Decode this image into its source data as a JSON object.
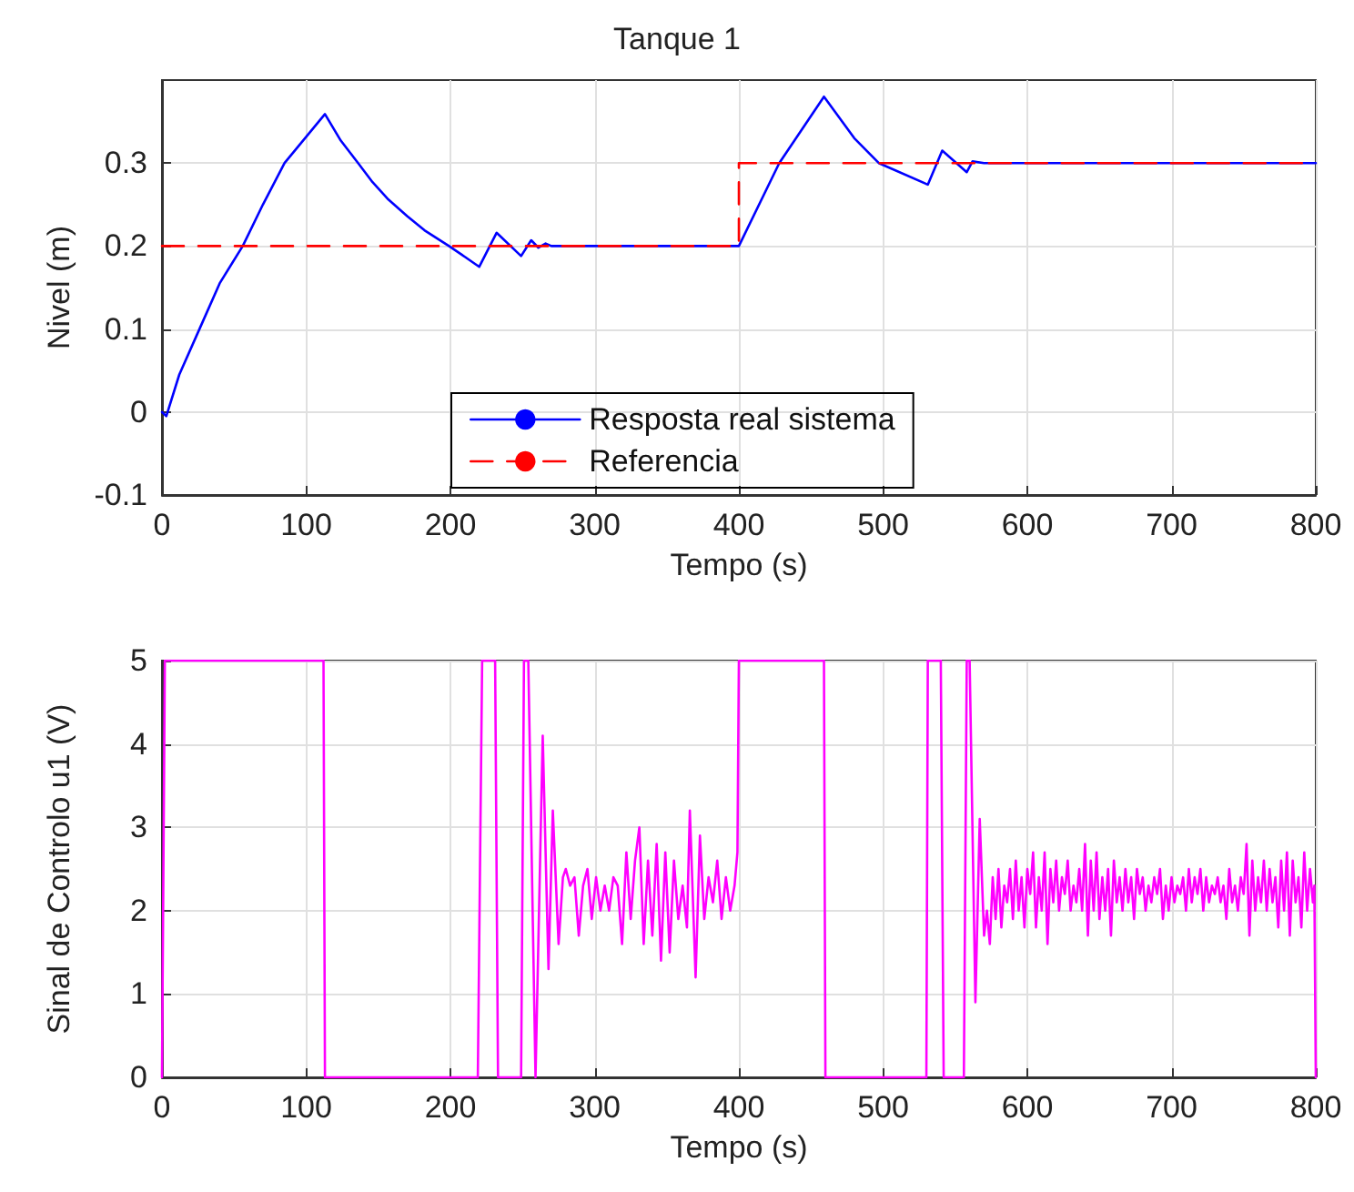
{
  "chart_data": [
    {
      "type": "line",
      "title": "Tanque 1",
      "xlabel": "Tempo (s)",
      "ylabel": "Nivel (m)",
      "xlim": [
        0,
        800
      ],
      "xticks": [
        0,
        100,
        200,
        300,
        400,
        500,
        600,
        700,
        800
      ],
      "ylim": [
        -0.1,
        0.4
      ],
      "yticks": [
        -0.1,
        0,
        0.1,
        0.2,
        0.3
      ],
      "grid": true,
      "legend": "bottom",
      "marker": "none",
      "series": [
        {
          "name": "Resposta real sistema",
          "color": "#0000ff",
          "line_style": "solid",
          "x": [
            0,
            3,
            12,
            26,
            40,
            56,
            70,
            85,
            113,
            124,
            136,
            146,
            157,
            170,
            182,
            199,
            210,
            220,
            232,
            249,
            256,
            261,
            266,
            270,
            400,
            428,
            459,
            480,
            497,
            531,
            541,
            558,
            562,
            570,
            800
          ],
          "values": [
            0,
            -0.005,
            0.045,
            0.1,
            0.155,
            0.2,
            0.25,
            0.3,
            0.359,
            0.327,
            0.3,
            0.277,
            0.256,
            0.236,
            0.219,
            0.2,
            0.187,
            0.175,
            0.216,
            0.188,
            0.207,
            0.198,
            0.203,
            0.2,
            0.2,
            0.3,
            0.38,
            0.33,
            0.3,
            0.274,
            0.315,
            0.289,
            0.302,
            0.3,
            0.3
          ]
        },
        {
          "name": "Referencia",
          "color": "#ff0000",
          "line_style": "dashed",
          "x": [
            0,
            400,
            400,
            800
          ],
          "values": [
            0.2,
            0.2,
            0.3,
            0.3
          ]
        }
      ]
    },
    {
      "type": "line",
      "xlabel": "Tempo (s)",
      "ylabel": "Sinal de Controlo u1 (V)",
      "xlim": [
        0,
        800
      ],
      "xticks": [
        0,
        100,
        200,
        300,
        400,
        500,
        600,
        700,
        800
      ],
      "ylim": [
        0,
        5
      ],
      "yticks": [
        0,
        1,
        2,
        3,
        4,
        5
      ],
      "grid": true,
      "marker": "none",
      "series": [
        {
          "color": "#ff00ff",
          "line_style": "solid",
          "x": [
            0,
            2,
            112,
            113,
            219,
            222,
            231,
            233,
            249,
            251,
            254,
            259,
            264,
            268,
            271,
            275,
            278,
            280,
            283,
            286,
            289,
            292,
            295,
            298,
            301,
            304,
            307,
            310,
            313,
            316,
            319,
            322,
            325,
            328,
            331,
            334,
            337,
            340,
            343,
            346,
            349,
            352,
            355,
            358,
            361,
            364,
            366,
            370,
            373,
            376,
            379,
            382,
            385,
            388,
            391,
            394,
            397,
            399,
            400,
            459,
            460,
            530,
            531,
            540,
            542,
            556,
            558,
            560,
            564,
            567,
            570,
            572,
            574,
            576,
            578,
            580,
            582,
            584,
            586,
            588,
            590,
            592,
            594,
            596,
            598,
            600,
            602,
            604,
            606,
            608,
            610,
            612,
            614,
            616,
            618,
            620,
            622,
            624,
            626,
            628,
            630,
            632,
            634,
            636,
            638,
            640,
            642,
            644,
            646,
            648,
            650,
            652,
            654,
            656,
            658,
            660,
            662,
            664,
            666,
            668,
            670,
            672,
            674,
            676,
            678,
            680,
            682,
            684,
            686,
            688,
            690,
            692,
            694,
            696,
            698,
            700,
            702,
            704,
            706,
            708,
            710,
            712,
            714,
            716,
            718,
            720,
            722,
            724,
            726,
            728,
            730,
            732,
            734,
            736,
            738,
            740,
            742,
            744,
            746,
            748,
            750,
            752,
            754,
            756,
            758,
            760,
            762,
            764,
            766,
            768,
            770,
            772,
            774,
            776,
            778,
            780,
            782,
            784,
            786,
            788,
            790,
            792,
            794,
            796,
            798,
            799,
            800
          ],
          "values": [
            0,
            5,
            5,
            0,
            0,
            5,
            5,
            0,
            0,
            5,
            5,
            0,
            4.1,
            1.3,
            3.2,
            1.6,
            2.4,
            2.5,
            2.3,
            2.4,
            1.7,
            2.3,
            2.5,
            1.9,
            2.4,
            2.0,
            2.3,
            2.0,
            2.4,
            2.3,
            1.6,
            2.7,
            1.9,
            2.6,
            3.0,
            1.6,
            2.6,
            1.7,
            2.8,
            1.4,
            2.7,
            1.5,
            2.6,
            1.9,
            2.3,
            1.8,
            3.2,
            1.2,
            2.9,
            1.9,
            2.4,
            2.1,
            2.6,
            1.9,
            2.4,
            2.0,
            2.3,
            2.7,
            5,
            5,
            0,
            0,
            5,
            5,
            0,
            0,
            5,
            5,
            0.9,
            3.1,
            1.7,
            2.0,
            1.6,
            2.4,
            1.9,
            2.5,
            1.8,
            2.3,
            2.1,
            2.5,
            1.9,
            2.6,
            2.0,
            2.4,
            1.8,
            2.5,
            2.2,
            2.7,
            1.8,
            2.4,
            2.0,
            2.7,
            1.6,
            2.5,
            2.1,
            2.6,
            2.0,
            2.4,
            2.2,
            2.6,
            2.0,
            2.3,
            2.1,
            2.5,
            2.0,
            2.8,
            1.7,
            2.6,
            2.0,
            2.7,
            1.9,
            2.4,
            2.0,
            2.5,
            1.7,
            2.6,
            2.1,
            2.4,
            2.0,
            2.5,
            2.1,
            2.4,
            1.9,
            2.5,
            2.2,
            2.4,
            2.0,
            2.3,
            2.1,
            2.4,
            2.2,
            2.5,
            1.9,
            2.3,
            2.0,
            2.4,
            2.1,
            2.3,
            2.2,
            2.4,
            2.0,
            2.5,
            2.1,
            2.4,
            2.2,
            2.5,
            2.0,
            2.4,
            2.1,
            2.3,
            2.2,
            2.4,
            2.1,
            2.3,
            1.9,
            2.5,
            2.1,
            2.3,
            2.0,
            2.4,
            2.2,
            2.8,
            1.7,
            2.6,
            2.0,
            2.4,
            2.1,
            2.6,
            2.0,
            2.5,
            2.1,
            2.4,
            1.8,
            2.6,
            2.0,
            2.7,
            1.7,
            2.6,
            2.1,
            2.4,
            1.8,
            2.7,
            2.0,
            2.5,
            2.1,
            2.3,
            0
          ]
        }
      ]
    }
  ]
}
